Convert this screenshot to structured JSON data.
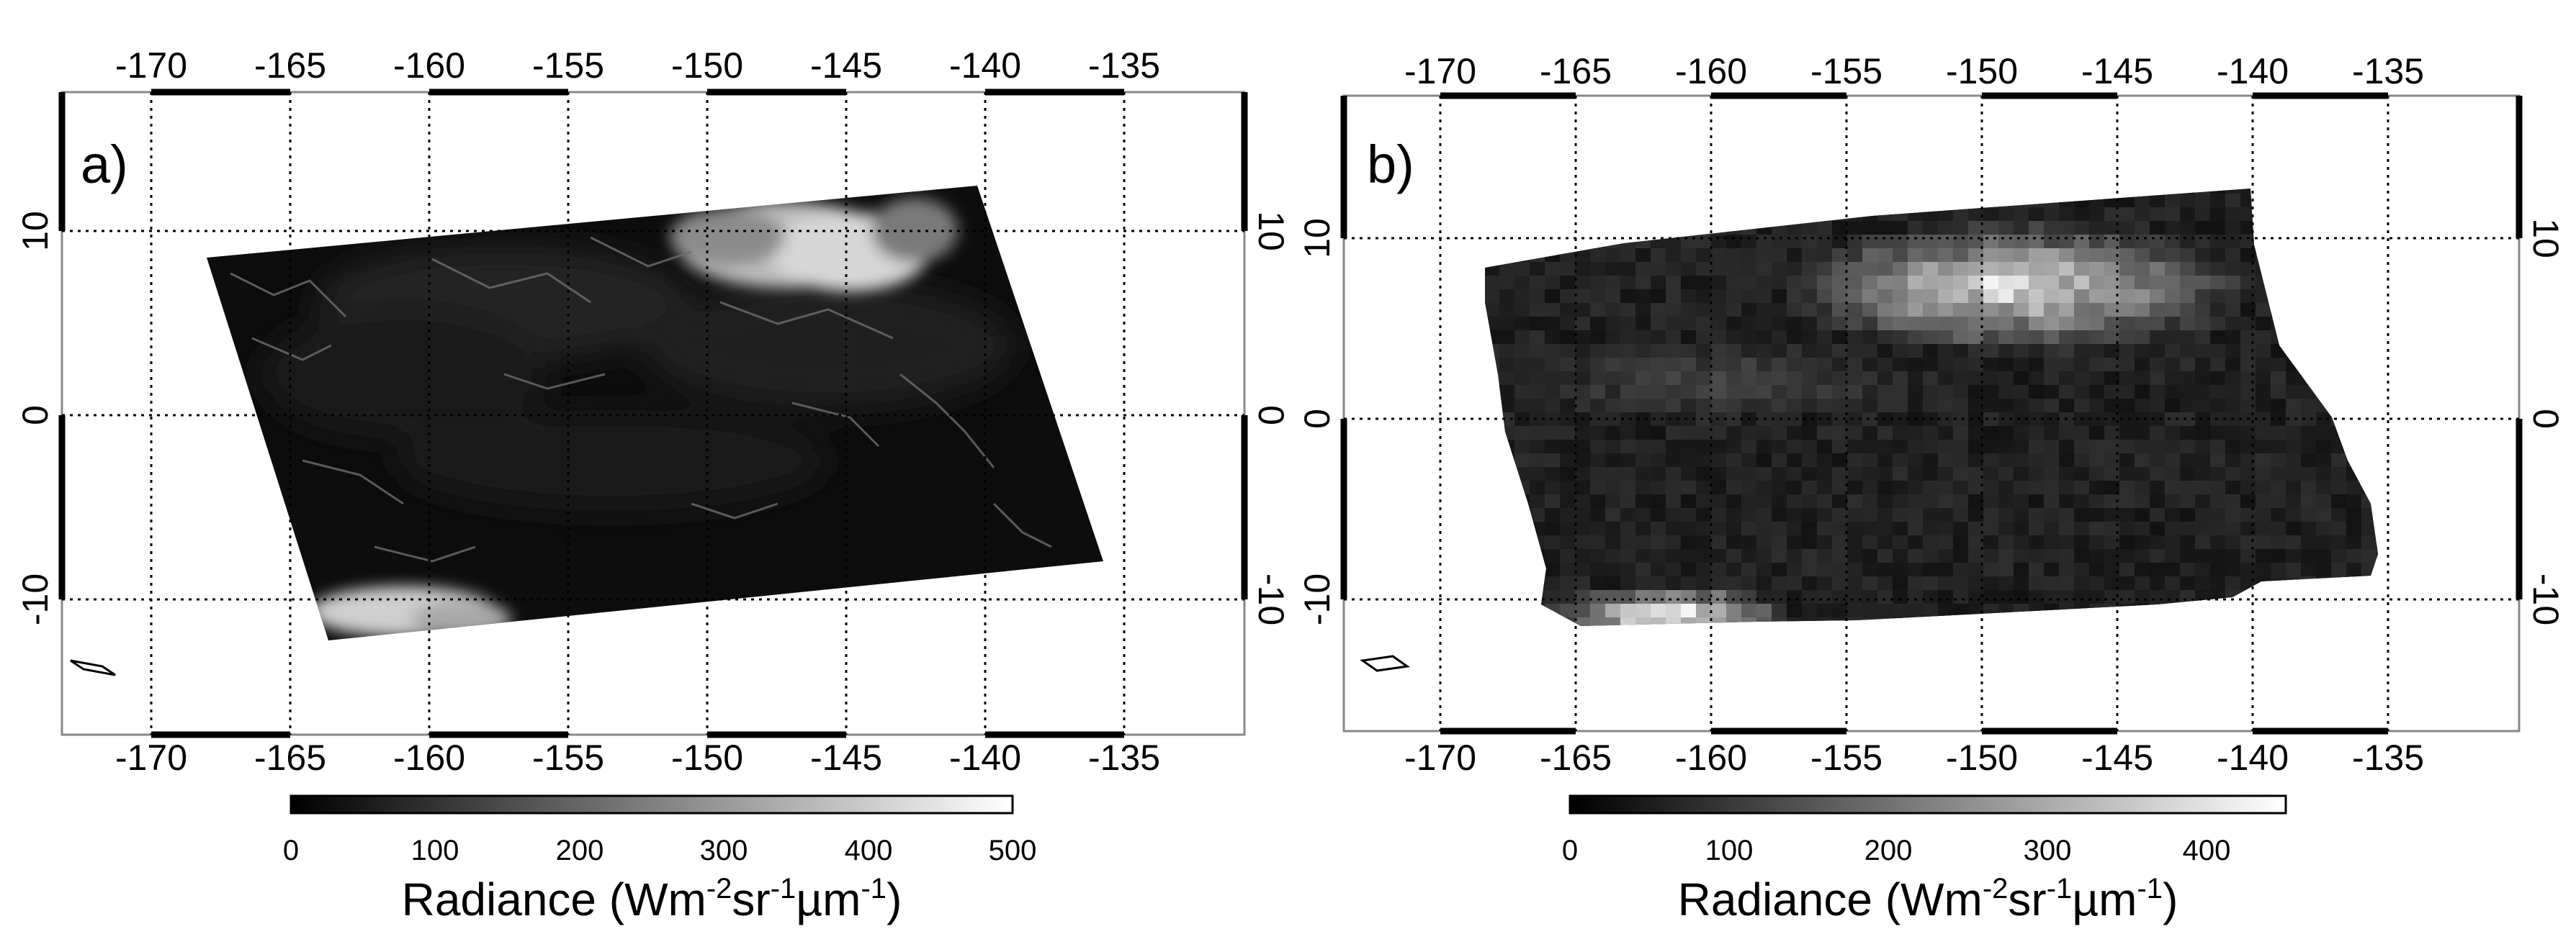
{
  "figure": {
    "panels": [
      {
        "id": "a",
        "label": "a)",
        "lon_ticks": [
          "-170",
          "-165",
          "-160",
          "-155",
          "-150",
          "-145",
          "-140",
          "-135"
        ],
        "lat_ticks": [
          "10",
          "0",
          "-10"
        ],
        "colorbar": {
          "ticks": [
            "0",
            "100",
            "200",
            "300",
            "400",
            "500"
          ],
          "range": [
            0,
            500
          ],
          "title_main": "Radiance (Wm",
          "sup1": "-2",
          "mid1": "sr",
          "sup2": "-1",
          "mid2": "µm",
          "sup3": "-1",
          "title_end": ")"
        }
      },
      {
        "id": "b",
        "label": "b)",
        "lon_ticks": [
          "-170",
          "-165",
          "-160",
          "-155",
          "-150",
          "-145",
          "-140",
          "-135"
        ],
        "lat_ticks": [
          "10",
          "0",
          "-10"
        ],
        "colorbar": {
          "ticks": [
            "0",
            "100",
            "200",
            "300",
            "400"
          ],
          "range": [
            0,
            450
          ],
          "title_main": "Radiance (Wm",
          "sup1": "-2",
          "mid1": "sr",
          "sup2": "-1",
          "mid2": "µm",
          "sup3": "-1",
          "title_end": ")"
        }
      }
    ],
    "colors": {
      "scene_dark": "#0c0c0c",
      "cloud_bright": "#e8e8e8",
      "grid": "#000000"
    }
  }
}
